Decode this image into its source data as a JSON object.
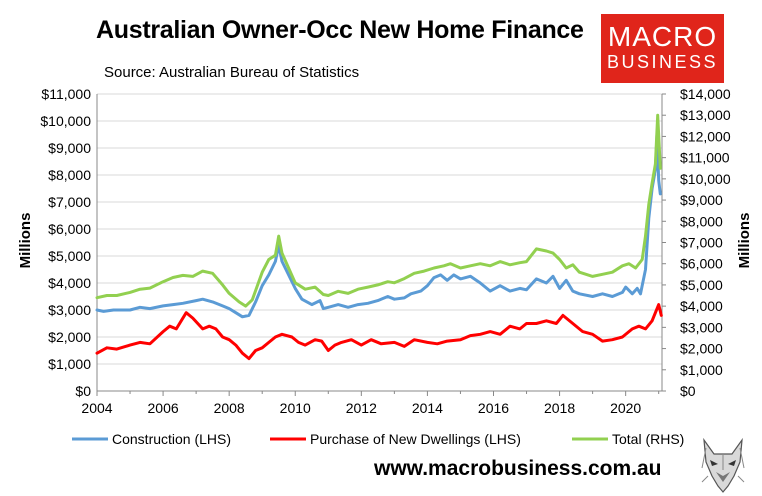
{
  "header": {
    "title": "Australian Owner-Occ New Home Finance",
    "subtitle": "Source: Australian Bureau of Statistics",
    "logo_line1": "MACRO",
    "logo_line2": "BUSINESS",
    "logo_color": "#e0251b"
  },
  "footer": {
    "website": "www.macrobusiness.com.au",
    "mascot_icon": "wolf-icon"
  },
  "chart_data": {
    "type": "line",
    "title": "Australian Owner-Occ New Home Finance",
    "subtitle": "Source: Australian Bureau of Statistics",
    "ylabel_left": "Millions",
    "ylabel_right": "Millions",
    "xlim": [
      2004,
      2021.1
    ],
    "ylim_left": [
      0,
      11000
    ],
    "ylim_right": [
      0,
      14000
    ],
    "x_ticks": [
      "2004",
      "2006",
      "2008",
      "2010",
      "2012",
      "2014",
      "2016",
      "2018",
      "2020"
    ],
    "y_ticks_left": [
      "$0",
      "$1,000",
      "$2,000",
      "$3,000",
      "$4,000",
      "$5,000",
      "$6,000",
      "$7,000",
      "$8,000",
      "$9,000",
      "$10,000",
      "$11,000"
    ],
    "y_ticks_right": [
      "$0",
      "$1,000",
      "$2,000",
      "$3,000",
      "$4,000",
      "$5,000",
      "$6,000",
      "$7,000",
      "$8,000",
      "$9,000",
      "$10,000",
      "$11,000",
      "$12,000",
      "$13,000",
      "$14,000"
    ],
    "grid": true,
    "legend_position": "bottom",
    "series": [
      {
        "name": "Construction (LHS)",
        "axis": "left",
        "color": "#5b9bd5",
        "points": [
          [
            2004.0,
            3000
          ],
          [
            2004.2,
            2950
          ],
          [
            2004.5,
            3000
          ],
          [
            2005.0,
            3000
          ],
          [
            2005.3,
            3100
          ],
          [
            2005.6,
            3050
          ],
          [
            2006.0,
            3150
          ],
          [
            2006.3,
            3200
          ],
          [
            2006.6,
            3250
          ],
          [
            2007.0,
            3350
          ],
          [
            2007.2,
            3400
          ],
          [
            2007.5,
            3300
          ],
          [
            2007.8,
            3150
          ],
          [
            2008.0,
            3050
          ],
          [
            2008.2,
            2900
          ],
          [
            2008.4,
            2750
          ],
          [
            2008.6,
            2800
          ],
          [
            2008.8,
            3300
          ],
          [
            2009.0,
            3900
          ],
          [
            2009.2,
            4300
          ],
          [
            2009.4,
            4800
          ],
          [
            2009.5,
            5400
          ],
          [
            2009.6,
            4800
          ],
          [
            2009.8,
            4300
          ],
          [
            2010.0,
            3800
          ],
          [
            2010.2,
            3400
          ],
          [
            2010.5,
            3200
          ],
          [
            2010.75,
            3350
          ],
          [
            2010.85,
            3050
          ],
          [
            2011.0,
            3100
          ],
          [
            2011.3,
            3200
          ],
          [
            2011.6,
            3100
          ],
          [
            2011.9,
            3200
          ],
          [
            2012.2,
            3250
          ],
          [
            2012.5,
            3350
          ],
          [
            2012.8,
            3500
          ],
          [
            2013.0,
            3400
          ],
          [
            2013.3,
            3450
          ],
          [
            2013.5,
            3600
          ],
          [
            2013.8,
            3700
          ],
          [
            2014.0,
            3900
          ],
          [
            2014.2,
            4200
          ],
          [
            2014.4,
            4300
          ],
          [
            2014.6,
            4100
          ],
          [
            2014.8,
            4300
          ],
          [
            2015.0,
            4150
          ],
          [
            2015.3,
            4250
          ],
          [
            2015.6,
            4000
          ],
          [
            2015.9,
            3700
          ],
          [
            2016.2,
            3900
          ],
          [
            2016.5,
            3700
          ],
          [
            2016.8,
            3800
          ],
          [
            2017.0,
            3750
          ],
          [
            2017.3,
            4150
          ],
          [
            2017.6,
            4000
          ],
          [
            2017.8,
            4250
          ],
          [
            2018.0,
            3800
          ],
          [
            2018.2,
            4100
          ],
          [
            2018.4,
            3700
          ],
          [
            2018.6,
            3600
          ],
          [
            2019.0,
            3500
          ],
          [
            2019.3,
            3600
          ],
          [
            2019.6,
            3500
          ],
          [
            2019.9,
            3650
          ],
          [
            2020.0,
            3850
          ],
          [
            2020.2,
            3600
          ],
          [
            2020.35,
            3800
          ],
          [
            2020.45,
            3600
          ],
          [
            2020.6,
            4500
          ],
          [
            2020.7,
            6400
          ],
          [
            2020.8,
            7500
          ],
          [
            2020.9,
            8200
          ],
          [
            2020.95,
            9500
          ],
          [
            2021.0,
            7800
          ],
          [
            2021.05,
            7300
          ]
        ]
      },
      {
        "name": "Purchase of New Dwellings (LHS)",
        "axis": "left",
        "color": "#ff0000",
        "points": [
          [
            2004.0,
            1400
          ],
          [
            2004.3,
            1600
          ],
          [
            2004.6,
            1550
          ],
          [
            2005.0,
            1700
          ],
          [
            2005.3,
            1800
          ],
          [
            2005.6,
            1750
          ],
          [
            2006.0,
            2200
          ],
          [
            2006.2,
            2400
          ],
          [
            2006.4,
            2300
          ],
          [
            2006.7,
            2900
          ],
          [
            2006.9,
            2700
          ],
          [
            2007.2,
            2300
          ],
          [
            2007.4,
            2400
          ],
          [
            2007.6,
            2300
          ],
          [
            2007.8,
            2000
          ],
          [
            2008.0,
            1900
          ],
          [
            2008.2,
            1700
          ],
          [
            2008.4,
            1400
          ],
          [
            2008.6,
            1200
          ],
          [
            2008.8,
            1500
          ],
          [
            2009.0,
            1600
          ],
          [
            2009.2,
            1800
          ],
          [
            2009.4,
            2000
          ],
          [
            2009.6,
            2100
          ],
          [
            2009.9,
            2000
          ],
          [
            2010.1,
            1800
          ],
          [
            2010.3,
            1700
          ],
          [
            2010.6,
            1900
          ],
          [
            2010.8,
            1850
          ],
          [
            2011.0,
            1500
          ],
          [
            2011.2,
            1700
          ],
          [
            2011.4,
            1800
          ],
          [
            2011.7,
            1900
          ],
          [
            2012.0,
            1700
          ],
          [
            2012.3,
            1900
          ],
          [
            2012.6,
            1750
          ],
          [
            2013.0,
            1800
          ],
          [
            2013.3,
            1650
          ],
          [
            2013.6,
            1900
          ],
          [
            2014.0,
            1800
          ],
          [
            2014.3,
            1750
          ],
          [
            2014.6,
            1850
          ],
          [
            2015.0,
            1900
          ],
          [
            2015.3,
            2050
          ],
          [
            2015.6,
            2100
          ],
          [
            2015.9,
            2200
          ],
          [
            2016.2,
            2100
          ],
          [
            2016.5,
            2400
          ],
          [
            2016.8,
            2300
          ],
          [
            2017.0,
            2500
          ],
          [
            2017.3,
            2500
          ],
          [
            2017.6,
            2600
          ],
          [
            2017.9,
            2500
          ],
          [
            2018.1,
            2800
          ],
          [
            2018.4,
            2500
          ],
          [
            2018.7,
            2200
          ],
          [
            2019.0,
            2100
          ],
          [
            2019.3,
            1850
          ],
          [
            2019.6,
            1900
          ],
          [
            2019.9,
            2000
          ],
          [
            2020.2,
            2300
          ],
          [
            2020.4,
            2400
          ],
          [
            2020.6,
            2300
          ],
          [
            2020.8,
            2600
          ],
          [
            2020.9,
            2900
          ],
          [
            2021.0,
            3200
          ],
          [
            2021.08,
            2800
          ]
        ]
      },
      {
        "name": "Total (RHS)",
        "axis": "right",
        "color": "#92d050",
        "points": [
          [
            2004.0,
            4400
          ],
          [
            2004.3,
            4500
          ],
          [
            2004.6,
            4500
          ],
          [
            2005.0,
            4650
          ],
          [
            2005.3,
            4800
          ],
          [
            2005.6,
            4850
          ],
          [
            2006.0,
            5150
          ],
          [
            2006.3,
            5350
          ],
          [
            2006.6,
            5450
          ],
          [
            2006.9,
            5400
          ],
          [
            2007.2,
            5650
          ],
          [
            2007.5,
            5550
          ],
          [
            2007.8,
            5000
          ],
          [
            2008.0,
            4600
          ],
          [
            2008.3,
            4200
          ],
          [
            2008.5,
            4000
          ],
          [
            2008.7,
            4300
          ],
          [
            2009.0,
            5600
          ],
          [
            2009.2,
            6200
          ],
          [
            2009.4,
            6400
          ],
          [
            2009.5,
            7300
          ],
          [
            2009.6,
            6500
          ],
          [
            2009.8,
            5800
          ],
          [
            2010.0,
            5100
          ],
          [
            2010.3,
            4800
          ],
          [
            2010.6,
            4900
          ],
          [
            2010.85,
            4550
          ],
          [
            2011.0,
            4500
          ],
          [
            2011.3,
            4700
          ],
          [
            2011.6,
            4600
          ],
          [
            2011.9,
            4800
          ],
          [
            2012.2,
            4900
          ],
          [
            2012.5,
            5000
          ],
          [
            2012.8,
            5150
          ],
          [
            2013.0,
            5100
          ],
          [
            2013.3,
            5300
          ],
          [
            2013.6,
            5550
          ],
          [
            2013.9,
            5650
          ],
          [
            2014.2,
            5800
          ],
          [
            2014.5,
            5900
          ],
          [
            2014.7,
            6000
          ],
          [
            2015.0,
            5800
          ],
          [
            2015.3,
            5900
          ],
          [
            2015.6,
            6000
          ],
          [
            2015.9,
            5900
          ],
          [
            2016.2,
            6100
          ],
          [
            2016.5,
            5950
          ],
          [
            2016.8,
            6050
          ],
          [
            2017.0,
            6100
          ],
          [
            2017.3,
            6700
          ],
          [
            2017.6,
            6600
          ],
          [
            2017.8,
            6500
          ],
          [
            2018.0,
            6200
          ],
          [
            2018.2,
            5800
          ],
          [
            2018.4,
            5950
          ],
          [
            2018.6,
            5600
          ],
          [
            2019.0,
            5400
          ],
          [
            2019.3,
            5500
          ],
          [
            2019.6,
            5600
          ],
          [
            2019.9,
            5900
          ],
          [
            2020.1,
            6000
          ],
          [
            2020.3,
            5800
          ],
          [
            2020.5,
            6200
          ],
          [
            2020.6,
            7300
          ],
          [
            2020.7,
            8800
          ],
          [
            2020.8,
            9800
          ],
          [
            2020.9,
            10700
          ],
          [
            2020.97,
            13000
          ],
          [
            2021.05,
            10500
          ]
        ]
      }
    ]
  }
}
